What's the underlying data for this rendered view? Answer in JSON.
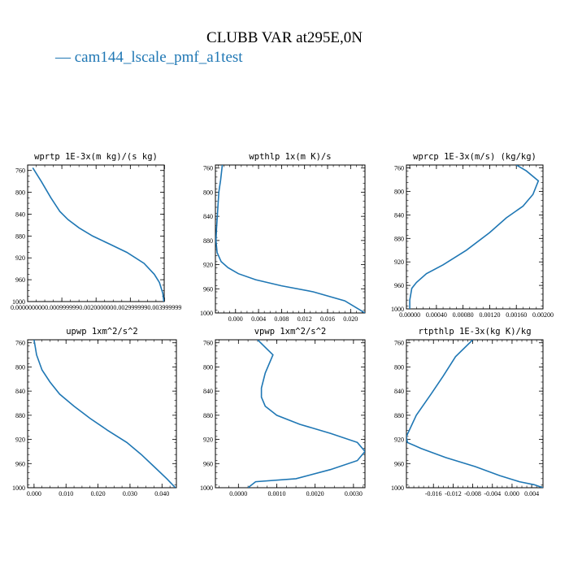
{
  "title": "CLUBB VAR at295E,0N",
  "legend": {
    "label": "— cam144_lscale_pmf_a1test",
    "color": "#1f77b4"
  },
  "chart_data": [
    {
      "type": "line",
      "title": "wprtp  1E-3x(m kg)/(s kg)",
      "xlim": [
        0.0,
        0.00399
      ],
      "ylim": [
        1000,
        750
      ],
      "y_ticks": [
        760,
        800,
        840,
        880,
        920,
        960,
        1000
      ],
      "x_ticks": [
        {
          "v": 0.0,
          "label": "0.000000000"
        },
        {
          "v": 0.001,
          "label": "0.000999999"
        },
        {
          "v": 0.002,
          "label": "0.002000000"
        },
        {
          "v": 0.003,
          "label": "0.002999999"
        },
        {
          "v": 0.004,
          "label": "0.003999999"
        }
      ],
      "series": [
        {
          "color": "#1f77b4",
          "x": [
            0.00015,
            0.0004,
            0.00068,
            0.00094,
            0.00118,
            0.0015,
            0.0019,
            0.0024,
            0.0029,
            0.0034,
            0.0037,
            0.00385,
            0.00395,
            0.00398
          ],
          "y": [
            755,
            780,
            810,
            835,
            850,
            865,
            880,
            895,
            910,
            930,
            950,
            965,
            985,
            1000
          ]
        }
      ]
    },
    {
      "type": "line",
      "title": "wpthlp  1x(m K)/s",
      "xlim": [
        -0.0035,
        0.0225
      ],
      "ylim": [
        1000,
        755
      ],
      "y_ticks": [
        760,
        800,
        840,
        880,
        920,
        960,
        1000
      ],
      "x_ticks": [
        {
          "v": 0.0,
          "label": "0.000"
        },
        {
          "v": 0.004,
          "label": "0.004"
        },
        {
          "v": 0.008,
          "label": "0.008"
        },
        {
          "v": 0.012,
          "label": "0.012"
        },
        {
          "v": 0.016,
          "label": "0.016"
        },
        {
          "v": 0.02,
          "label": "0.020"
        }
      ],
      "series": [
        {
          "color": "#1f77b4",
          "x": [
            -0.0023,
            -0.0026,
            -0.0029,
            -0.0031,
            -0.0033,
            -0.0034,
            -0.0032,
            -0.0025,
            -0.0013,
            0.0005,
            0.0035,
            0.008,
            0.0135,
            0.019,
            0.0225
          ],
          "y": [
            755,
            780,
            800,
            830,
            860,
            880,
            900,
            915,
            925,
            935,
            945,
            955,
            965,
            980,
            1000
          ]
        }
      ]
    },
    {
      "type": "line",
      "title": "wprcp  1E-3x(m/s) (kg/kg)",
      "xlim": [
        -5e-05,
        0.002
      ],
      "ylim": [
        1000,
        755
      ],
      "y_ticks": [
        760,
        800,
        840,
        880,
        920,
        960,
        1000
      ],
      "x_ticks": [
        {
          "v": 0.0,
          "label": "0.00000"
        },
        {
          "v": 0.0004,
          "label": "0.00040"
        },
        {
          "v": 0.0008,
          "label": "0.00080"
        },
        {
          "v": 0.0012,
          "label": "0.00120"
        },
        {
          "v": 0.0016,
          "label": "0.00160"
        },
        {
          "v": 0.002,
          "label": "0.00200"
        }
      ],
      "series": [
        {
          "color": "#1f77b4",
          "x": [
            0.0016,
            0.00175,
            0.00193,
            0.00185,
            0.0017,
            0.00145,
            0.0012,
            0.00085,
            0.0005,
            0.00025,
            0.0001,
            3e-05,
            0.0,
            0.0
          ],
          "y": [
            755,
            765,
            782,
            805,
            825,
            845,
            870,
            900,
            925,
            940,
            955,
            965,
            985,
            1000
          ]
        }
      ]
    },
    {
      "type": "line",
      "title": "upwp  1xm^2/s^2",
      "xlim": [
        -0.002,
        0.0445
      ],
      "ylim": [
        1000,
        755
      ],
      "y_ticks": [
        760,
        800,
        840,
        880,
        920,
        960,
        1000
      ],
      "x_ticks": [
        {
          "v": 0.0,
          "label": "0.000"
        },
        {
          "v": 0.01,
          "label": "0.010"
        },
        {
          "v": 0.02,
          "label": "0.020"
        },
        {
          "v": 0.03,
          "label": "0.030"
        },
        {
          "v": 0.04,
          "label": "0.040"
        }
      ],
      "series": [
        {
          "color": "#1f77b4",
          "x": [
            0.0,
            0.0008,
            0.0025,
            0.005,
            0.008,
            0.0125,
            0.0175,
            0.023,
            0.029,
            0.0335,
            0.0375,
            0.0415,
            0.0442
          ],
          "y": [
            755,
            780,
            805,
            825,
            845,
            865,
            885,
            905,
            925,
            945,
            965,
            985,
            1000
          ]
        }
      ]
    },
    {
      "type": "line",
      "title": "vpwp  1xm^2/s^2",
      "xlim": [
        -0.0006,
        0.0033
      ],
      "ylim": [
        1000,
        755
      ],
      "y_ticks": [
        760,
        800,
        840,
        880,
        920,
        960,
        1000
      ],
      "x_ticks": [
        {
          "v": 0.0,
          "label": "0.0000"
        },
        {
          "v": 0.001,
          "label": "0.0010"
        },
        {
          "v": 0.002,
          "label": "0.0020"
        },
        {
          "v": 0.003,
          "label": "0.0030"
        }
      ],
      "series": [
        {
          "color": "#1f77b4",
          "x": [
            0.0005,
            0.0009,
            0.0007,
            0.0006,
            0.0006,
            0.0007,
            0.001,
            0.0016,
            0.0024,
            0.0031,
            0.0033,
            0.0031,
            0.0024,
            0.0015,
            0.00045,
            0.00025
          ],
          "y": [
            755,
            780,
            810,
            835,
            850,
            865,
            880,
            895,
            910,
            925,
            940,
            955,
            970,
            985,
            990,
            1000
          ]
        }
      ]
    },
    {
      "type": "line",
      "title": "rtpthlp  1E-3x(kg K)/kg",
      "xlim": [
        -0.0215,
        0.0063
      ],
      "ylim": [
        1000,
        755
      ],
      "y_ticks": [
        760,
        800,
        840,
        880,
        920,
        960,
        1000
      ],
      "x_ticks": [
        {
          "v": -0.016,
          "label": "-0.016"
        },
        {
          "v": -0.012,
          "label": "-0.012"
        },
        {
          "v": -0.008,
          "label": "-0.008"
        },
        {
          "v": -0.004,
          "label": "-0.004"
        },
        {
          "v": 0.0,
          "label": "0.000"
        },
        {
          "v": 0.004,
          "label": "0.004"
        }
      ],
      "series": [
        {
          "color": "#1f77b4",
          "x": [
            -0.008,
            -0.0115,
            -0.014,
            -0.0165,
            -0.0195,
            -0.0215,
            -0.0213,
            -0.0185,
            -0.0135,
            -0.0075,
            -0.0025,
            0.0015,
            0.0045,
            0.0063
          ],
          "y": [
            755,
            783,
            815,
            845,
            880,
            915,
            925,
            935,
            950,
            965,
            980,
            990,
            995,
            1000
          ]
        }
      ]
    }
  ]
}
